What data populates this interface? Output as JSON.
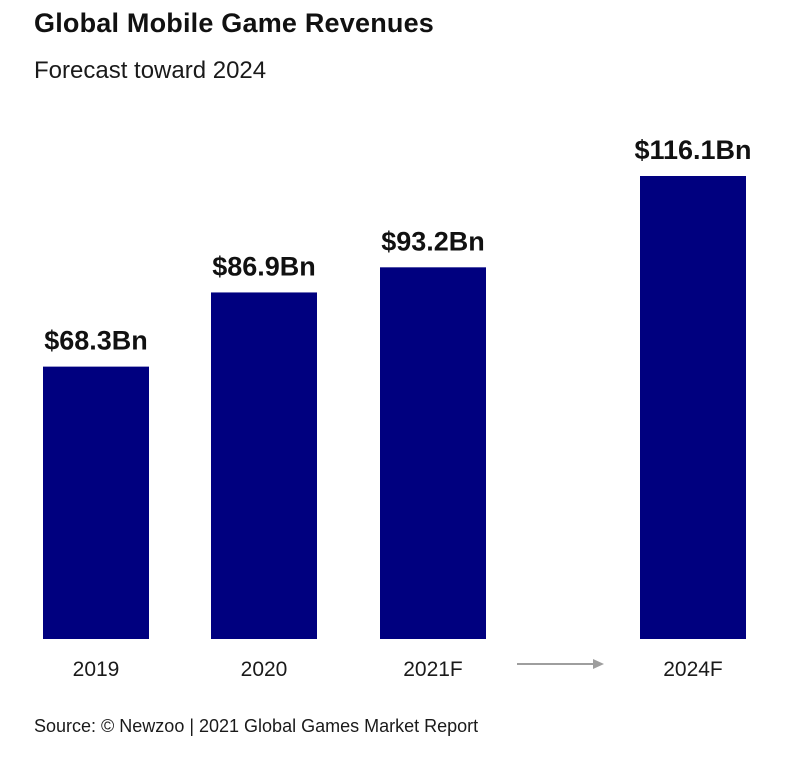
{
  "chart_data": {
    "type": "bar",
    "title": "Global Mobile Game Revenues",
    "subtitle": "Forecast toward 2024",
    "categories": [
      "2019",
      "2020",
      "2021F",
      "2024F"
    ],
    "values": [
      68.3,
      86.9,
      93.2,
      116.1
    ],
    "value_labels": [
      "$68.3Bn",
      "$86.9Bn",
      "$93.2Bn",
      "$116.1Bn"
    ],
    "unit": "Bn USD",
    "ylim": [
      0,
      116.1
    ],
    "grid": false,
    "bar_color": "#00007f",
    "arrow_color": "#9e9e9e"
  },
  "source": "Source: © Newzoo | 2021 Global Games Market Report"
}
